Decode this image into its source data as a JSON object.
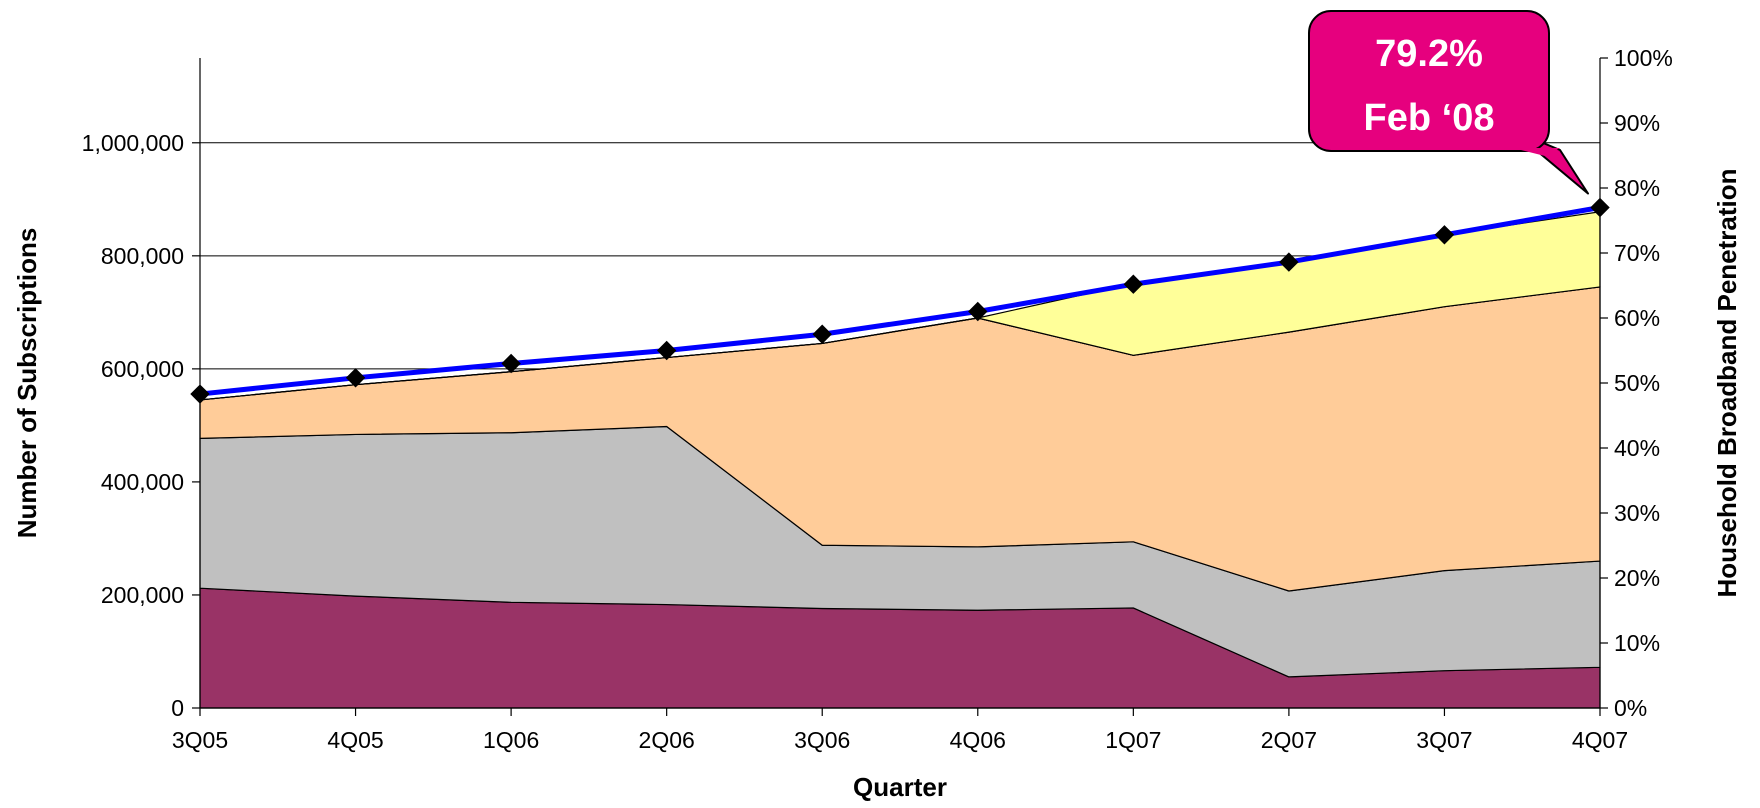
{
  "chart_data": {
    "type": "area",
    "title": "",
    "xlabel": "Quarter",
    "ylabel": "Number of Subscriptions",
    "y2label": "Household Broadband Penetration",
    "categories": [
      "3Q05",
      "4Q05",
      "1Q06",
      "2Q06",
      "3Q06",
      "4Q06",
      "1Q07",
      "2Q07",
      "3Q07",
      "4Q07"
    ],
    "ylim": [
      0,
      1150000
    ],
    "yticks": [
      0,
      200000,
      400000,
      600000,
      800000,
      1000000
    ],
    "ytick_labels": [
      "0",
      "200,000",
      "400,000",
      "600,000",
      "800,000",
      "1,000,000"
    ],
    "y2lim": [
      0,
      100
    ],
    "y2ticks": [
      0,
      10,
      20,
      30,
      40,
      50,
      60,
      70,
      80,
      90,
      100
    ],
    "y2tick_labels": [
      "0%",
      "10%",
      "20%",
      "30%",
      "40%",
      "50%",
      "60%",
      "70%",
      "80%",
      "90%",
      "100%"
    ],
    "grid": true,
    "stacked": true,
    "series": [
      {
        "color": "#993366",
        "values": [
          212000,
          198000,
          187000,
          183000,
          176000,
          173000,
          177000,
          55000,
          66000,
          72000
        ]
      },
      {
        "color": "#c0c0c0",
        "values": [
          265000,
          286000,
          300000,
          315000,
          112000,
          112000,
          117000,
          152000,
          177000,
          188000
        ]
      },
      {
        "color": "#ffcc99",
        "values": [
          68000,
          88000,
          108000,
          122000,
          357000,
          405000,
          330000,
          458000,
          467000,
          485000
        ]
      },
      {
        "color": "#ffff99",
        "values": [
          0,
          0,
          0,
          0,
          0,
          0,
          0,
          0,
          0,
          0
        ]
      },
      {
        "color": "#ffff99",
        "values": [
          0,
          0,
          0,
          0,
          0,
          0,
          127000,
          124000,
          127000,
          133000
        ]
      }
    ],
    "penetration_line": {
      "axis": "right",
      "color": "#0000ff",
      "marker": "diamond",
      "values": [
        48.3,
        50.8,
        53.0,
        55.0,
        57.5,
        61.0,
        65.2,
        68.6,
        72.8,
        77.0
      ]
    },
    "annotation": {
      "text_lines": [
        "79.2%",
        "Feb ‘08"
      ],
      "fill": "#e6007e",
      "points_to": "4Q07"
    }
  }
}
